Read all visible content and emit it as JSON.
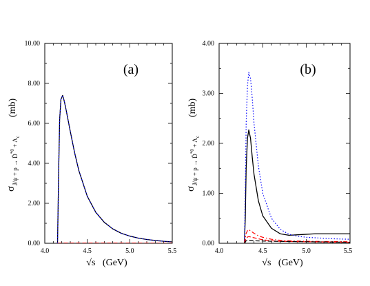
{
  "chart_data": [
    {
      "type": "line",
      "panel_label": "(a)",
      "xlabel": "√s   (GeV)",
      "ylabel": "(mb)",
      "xlim": [
        4.0,
        5.5
      ],
      "ylim": [
        0.0,
        10.0
      ],
      "x_ticks": [
        "4.0",
        "4.5",
        "5.0",
        "5.5"
      ],
      "y_ticks": [
        "0.00",
        "2.00",
        "4.00",
        "6.00",
        "8.00",
        "10.00"
      ],
      "series": [
        {
          "color": "#000000",
          "style": "solid",
          "x": [
            4.15,
            4.165,
            4.175,
            4.19,
            4.21,
            4.23,
            4.25,
            4.3,
            4.35,
            4.4,
            4.5,
            4.6,
            4.7,
            4.8,
            4.9,
            5.0,
            5.1,
            5.2,
            5.3,
            5.4,
            5.5
          ],
          "y": [
            0.0,
            4.0,
            6.2,
            7.2,
            7.4,
            7.1,
            6.7,
            5.6,
            4.55,
            3.65,
            2.35,
            1.55,
            1.05,
            0.72,
            0.5,
            0.36,
            0.26,
            0.19,
            0.14,
            0.1,
            0.07
          ]
        },
        {
          "color": "#0000ff",
          "style": "dotted",
          "x": [
            4.15,
            4.165,
            4.175,
            4.19,
            4.21,
            4.23,
            4.25,
            4.3,
            4.35,
            4.4,
            4.5,
            4.6,
            4.7,
            4.8,
            4.9,
            5.0,
            5.1,
            5.2,
            5.3,
            5.4,
            5.5
          ],
          "y": [
            0.0,
            4.0,
            6.2,
            7.2,
            7.4,
            7.1,
            6.7,
            5.6,
            4.55,
            3.65,
            2.35,
            1.55,
            1.05,
            0.72,
            0.5,
            0.36,
            0.26,
            0.19,
            0.14,
            0.1,
            0.07
          ]
        },
        {
          "color": "#ff0000",
          "style": "dashed",
          "x": [
            4.15,
            4.2,
            4.3,
            4.5,
            5.0,
            5.5
          ],
          "y": [
            0.0,
            0.01,
            0.01,
            0.01,
            0.01,
            0.0
          ]
        }
      ]
    },
    {
      "type": "line",
      "panel_label": "(b)",
      "xlabel": "√s   (GeV)",
      "ylabel": "(mb)",
      "xlim": [
        4.0,
        5.5
      ],
      "ylim": [
        0.0,
        4.0
      ],
      "x_ticks": [
        "4.0",
        "4.5",
        "5.0",
        "5.5"
      ],
      "y_ticks": [
        "0.00",
        "1.00",
        "2.00",
        "3.00",
        "4.00"
      ],
      "series": [
        {
          "color": "#000000",
          "style": "solid",
          "x": [
            4.29,
            4.3,
            4.31,
            4.325,
            4.34,
            4.36,
            4.38,
            4.4,
            4.45,
            4.5,
            4.6,
            4.7,
            4.8,
            4.9,
            5.0,
            5.1,
            5.2,
            5.3,
            5.4,
            5.5
          ],
          "y": [
            0.0,
            0.5,
            1.5,
            2.1,
            2.27,
            2.1,
            1.72,
            1.38,
            0.85,
            0.55,
            0.3,
            0.19,
            0.16,
            0.17,
            0.18,
            0.19,
            0.19,
            0.19,
            0.19,
            0.19
          ]
        },
        {
          "color": "#0000ff",
          "style": "dotted",
          "x": [
            4.29,
            4.3,
            4.31,
            4.325,
            4.34,
            4.36,
            4.38,
            4.4,
            4.45,
            4.5,
            4.6,
            4.7,
            4.8,
            4.9,
            5.0,
            5.1,
            5.2,
            5.3,
            5.4,
            5.5
          ],
          "y": [
            0.0,
            1.0,
            2.4,
            3.15,
            3.42,
            3.3,
            2.9,
            2.4,
            1.55,
            1.0,
            0.5,
            0.28,
            0.18,
            0.14,
            0.12,
            0.11,
            0.1,
            0.09,
            0.085,
            0.08
          ]
        },
        {
          "color": "#ff0000",
          "style": "dash-dot",
          "x": [
            4.29,
            4.31,
            4.33,
            4.35,
            4.4,
            4.45,
            4.5,
            4.6,
            4.7,
            4.8,
            5.0,
            5.2,
            5.5
          ],
          "y": [
            0.0,
            0.2,
            0.27,
            0.26,
            0.2,
            0.15,
            0.12,
            0.08,
            0.06,
            0.05,
            0.04,
            0.035,
            0.03
          ]
        },
        {
          "color": "#ff0000",
          "style": "dashed",
          "x": [
            4.29,
            4.31,
            4.33,
            4.35,
            4.4,
            4.45,
            4.5,
            4.6,
            4.7,
            4.8,
            5.0,
            5.2,
            5.5
          ],
          "y": [
            0.0,
            0.1,
            0.13,
            0.13,
            0.11,
            0.09,
            0.07,
            0.05,
            0.04,
            0.035,
            0.03,
            0.025,
            0.02
          ]
        },
        {
          "color": "#000000",
          "style": "dashed",
          "x": [
            4.29,
            4.31,
            4.35,
            4.4,
            4.6,
            5.0,
            5.5
          ],
          "y": [
            0.0,
            0.05,
            0.06,
            0.05,
            0.04,
            0.03,
            0.02
          ]
        }
      ]
    }
  ]
}
